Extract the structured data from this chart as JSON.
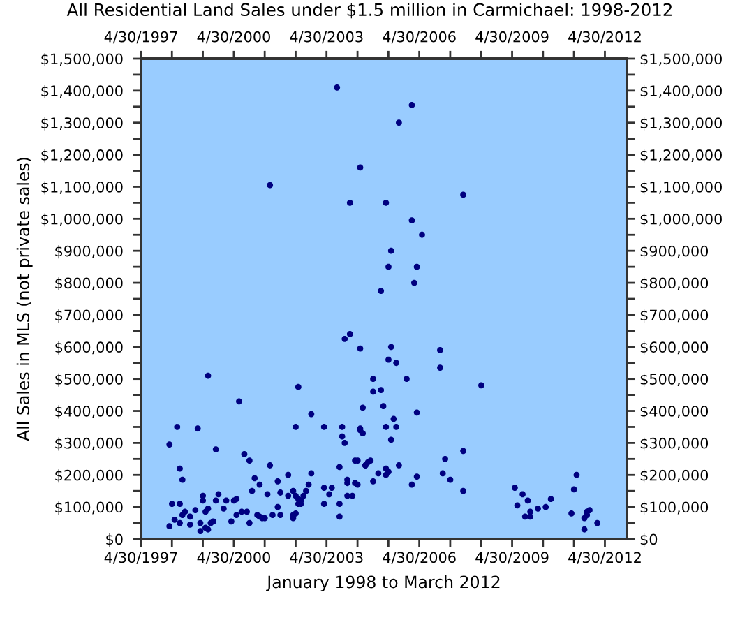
{
  "chart_data": {
    "type": "scatter",
    "title": "All Residential Land Sales under $1.5 million in Carmichael: 1998-2012",
    "xlabel": "January 1998 to March 2012",
    "ylabel": "All Sales in MLS (not private sales)",
    "color": "#000080",
    "marker": "circle",
    "x": [
      "1998-04",
      "1998-04",
      "1998-05",
      "1998-07",
      "1998-08",
      "1998-08",
      "1998-09",
      "1998-06",
      "1998-08",
      "1998-09",
      "1998-10",
      "1998-12",
      "1998-12",
      "1999-02",
      "1999-03",
      "1999-04",
      "1999-04",
      "1999-05",
      "1999-05",
      "1999-06",
      "1999-06",
      "1999-07",
      "1999-07",
      "1999-07",
      "1999-08",
      "1999-09",
      "1999-10",
      "1999-11",
      "1999-10",
      "2000-01",
      "2000-02",
      "2000-04",
      "2000-05",
      "2000-06",
      "2000-06",
      "2000-07",
      "2000-08",
      "2000-09",
      "2000-10",
      "2000-11",
      "2000-11",
      "2001-01",
      "2000-12",
      "2001-02",
      "2001-03",
      "2001-03",
      "2001-04",
      "2001-05",
      "2001-06",
      "2001-07",
      "2001-08",
      "2001-10",
      "2001-10",
      "2001-11",
      "2002-02",
      "2001-11",
      "2002-02",
      "2002-04",
      "2002-05",
      "2002-06",
      "2002-06",
      "2002-07",
      "2002-07",
      "2002-04",
      "2002-04",
      "2002-05",
      "2002-06",
      "2002-05",
      "2002-11",
      "2002-11",
      "2002-10",
      "2002-09",
      "2002-08",
      "2003-04",
      "2003-04",
      "2003-04",
      "2003-06",
      "2003-07",
      "2003-10",
      "2003-10",
      "2003-10",
      "2003-11",
      "2003-11",
      "2003-12",
      "2004-01",
      "2004-01",
      "2004-01",
      "2004-03",
      "2004-04",
      "2004-04",
      "2004-05",
      "2004-05",
      "2004-06",
      "2004-06",
      "2004-07",
      "2004-07",
      "2004-08",
      "2004-08",
      "2004-09",
      "2004-10",
      "2004-11",
      "2004-11",
      "2004-11",
      "2005-01",
      "2005-02",
      "2005-03",
      "2005-04",
      "2005-04",
      "2005-04",
      "2005-05",
      "2005-05",
      "2005-06",
      "2005-07",
      "2005-08",
      "2005-08",
      "2005-09",
      "2005-12",
      "2006-02",
      "2006-04",
      "2006-04",
      "2007-01",
      "2007-01",
      "2007-02",
      "2007-03",
      "2007-05",
      "2007-10",
      "2007-10",
      "2008-05",
      "2003-09",
      "2006-02",
      "2005-09",
      "2004-06",
      "2001-07",
      "2004-02",
      "2005-04",
      "2007-10",
      "2006-02",
      "2006-06",
      "2005-06",
      "2005-05",
      "2006-04",
      "2006-03",
      "2005-02",
      "2004-02",
      "2003-12",
      "2004-06",
      "2005-06",
      "2009-06",
      "2009-09",
      "2009-07",
      "2009-11",
      "2009-10",
      "2009-12",
      "2009-12",
      "2010-03",
      "2010-06",
      "2010-08",
      "2011-04",
      "2011-05",
      "2011-06",
      "2011-09",
      "2011-10",
      "2011-10",
      "2011-11",
      "2011-09",
      "2012-02"
    ],
    "values": [
      40000,
      295000,
      110000,
      350000,
      110000,
      220000,
      185000,
      60000,
      50000,
      75000,
      85000,
      70000,
      45000,
      90000,
      345000,
      50000,
      25000,
      135000,
      120000,
      35000,
      85000,
      510000,
      30000,
      95000,
      50000,
      55000,
      280000,
      140000,
      120000,
      95000,
      120000,
      55000,
      120000,
      125000,
      75000,
      430000,
      85000,
      265000,
      85000,
      245000,
      50000,
      190000,
      150000,
      75000,
      170000,
      70000,
      65000,
      65000,
      140000,
      230000,
      75000,
      180000,
      100000,
      145000,
      200000,
      75000,
      135000,
      150000,
      135000,
      125000,
      110000,
      120000,
      110000,
      75000,
      65000,
      80000,
      475000,
      350000,
      390000,
      205000,
      170000,
      150000,
      135000,
      350000,
      160000,
      110000,
      140000,
      160000,
      110000,
      70000,
      225000,
      350000,
      320000,
      300000,
      185000,
      175000,
      135000,
      135000,
      245000,
      175000,
      170000,
      245000,
      340000,
      345000,
      330000,
      410000,
      230000,
      230000,
      240000,
      245000,
      460000,
      180000,
      500000,
      205000,
      465000,
      415000,
      350000,
      220000,
      200000,
      210000,
      560000,
      310000,
      375000,
      350000,
      550000,
      230000,
      500000,
      170000,
      395000,
      195000,
      590000,
      535000,
      205000,
      250000,
      185000,
      275000,
      150000,
      480000,
      1410000,
      1355000,
      1300000,
      1160000,
      1105000,
      1050000,
      1050000,
      1075000,
      995000,
      950000,
      900000,
      850000,
      850000,
      800000,
      775000,
      640000,
      625000,
      595000,
      600000,
      160000,
      140000,
      105000,
      120000,
      70000,
      85000,
      70000,
      95000,
      100000,
      125000,
      80000,
      155000,
      200000,
      65000,
      75000,
      85000,
      90000,
      30000,
      50000
    ],
    "xlim": [
      "1997-04-30",
      "2013-01-15"
    ],
    "xticks": [
      {
        "value": "1997-04-30",
        "label": "4/30/1997"
      },
      {
        "value": "1998-04-30",
        "label": null
      },
      {
        "value": "1999-04-30",
        "label": null
      },
      {
        "value": "2000-04-30",
        "label": "4/30/2000"
      },
      {
        "value": "2001-04-30",
        "label": null
      },
      {
        "value": "2002-04-30",
        "label": null
      },
      {
        "value": "2003-04-30",
        "label": "4/30/2003"
      },
      {
        "value": "2004-04-30",
        "label": null
      },
      {
        "value": "2005-04-30",
        "label": null
      },
      {
        "value": "2006-04-30",
        "label": "4/30/2006"
      },
      {
        "value": "2007-04-30",
        "label": null
      },
      {
        "value": "2008-04-30",
        "label": null
      },
      {
        "value": "2009-04-30",
        "label": "4/30/2009"
      },
      {
        "value": "2010-04-30",
        "label": null
      },
      {
        "value": "2011-04-30",
        "label": null
      },
      {
        "value": "2012-04-30",
        "label": "4/30/2012"
      }
    ],
    "x2lim": [
      "1997-04-30",
      "2013-01-15"
    ],
    "x2ticks": [
      {
        "value": "1997-04-30",
        "label": "4/30/1997"
      },
      {
        "value": "1998-04-30",
        "label": null
      },
      {
        "value": "1999-04-30",
        "label": null
      },
      {
        "value": "2000-04-30",
        "label": "4/30/2000"
      },
      {
        "value": "2001-04-30",
        "label": null
      },
      {
        "value": "2002-04-30",
        "label": null
      },
      {
        "value": "2003-04-30",
        "label": "4/30/2003"
      },
      {
        "value": "2004-04-30",
        "label": null
      },
      {
        "value": "2005-04-30",
        "label": null
      },
      {
        "value": "2006-04-30",
        "label": "4/30/2006"
      },
      {
        "value": "2007-04-30",
        "label": null
      },
      {
        "value": "2008-04-30",
        "label": null
      },
      {
        "value": "2009-04-30",
        "label": "4/30/2009"
      },
      {
        "value": "2010-04-30",
        "label": null
      },
      {
        "value": "2011-04-30",
        "label": null
      },
      {
        "value": "2012-04-30",
        "label": "4/30/2012"
      }
    ],
    "ylim": [
      0,
      1500000
    ],
    "yticks": [
      {
        "value": 0,
        "label": "$0"
      },
      {
        "value": 50000,
        "label": null
      },
      {
        "value": 100000,
        "label": "$100,000"
      },
      {
        "value": 150000,
        "label": null
      },
      {
        "value": 200000,
        "label": "$200,000"
      },
      {
        "value": 250000,
        "label": null
      },
      {
        "value": 300000,
        "label": "$300,000"
      },
      {
        "value": 350000,
        "label": null
      },
      {
        "value": 400000,
        "label": "$400,000"
      },
      {
        "value": 450000,
        "label": null
      },
      {
        "value": 500000,
        "label": "$500,000"
      },
      {
        "value": 550000,
        "label": null
      },
      {
        "value": 600000,
        "label": "$600,000"
      },
      {
        "value": 650000,
        "label": null
      },
      {
        "value": 700000,
        "label": "$700,000"
      },
      {
        "value": 750000,
        "label": null
      },
      {
        "value": 800000,
        "label": "$800,000"
      },
      {
        "value": 850000,
        "label": null
      },
      {
        "value": 900000,
        "label": "$900,000"
      },
      {
        "value": 950000,
        "label": null
      },
      {
        "value": 1000000,
        "label": "$1,000,000"
      },
      {
        "value": 1050000,
        "label": null
      },
      {
        "value": 1100000,
        "label": "$1,100,000"
      },
      {
        "value": 1150000,
        "label": null
      },
      {
        "value": 1200000,
        "label": "$1,200,000"
      },
      {
        "value": 1250000,
        "label": null
      },
      {
        "value": 1300000,
        "label": "$1,300,000"
      },
      {
        "value": 1350000,
        "label": null
      },
      {
        "value": 1400000,
        "label": "$1,400,000"
      },
      {
        "value": 1450000,
        "label": null
      },
      {
        "value": 1500000,
        "label": "$1,500,000"
      }
    ],
    "y2lim": [
      0,
      1500000
    ],
    "y2ticks": [
      {
        "value": 0,
        "label": "$0"
      },
      {
        "value": 50000,
        "label": null
      },
      {
        "value": 100000,
        "label": "$100,000"
      },
      {
        "value": 150000,
        "label": null
      },
      {
        "value": 200000,
        "label": "$200,000"
      },
      {
        "value": 250000,
        "label": null
      },
      {
        "value": 300000,
        "label": "$300,000"
      },
      {
        "value": 350000,
        "label": null
      },
      {
        "value": 400000,
        "label": "$400,000"
      },
      {
        "value": 450000,
        "label": null
      },
      {
        "value": 500000,
        "label": "$500,000"
      },
      {
        "value": 550000,
        "label": null
      },
      {
        "value": 600000,
        "label": "$600,000"
      },
      {
        "value": 650000,
        "label": null
      },
      {
        "value": 700000,
        "label": "$700,000"
      },
      {
        "value": 750000,
        "label": null
      },
      {
        "value": 800000,
        "label": "$800,000"
      },
      {
        "value": 850000,
        "label": null
      },
      {
        "value": 900000,
        "label": "$900,000"
      },
      {
        "value": 950000,
        "label": null
      },
      {
        "value": 1000000,
        "label": "$1,000,000"
      },
      {
        "value": 1050000,
        "label": null
      },
      {
        "value": 1100000,
        "label": "$1,100,000"
      },
      {
        "value": 1150000,
        "label": null
      },
      {
        "value": 1200000,
        "label": "$1,200,000"
      },
      {
        "value": 1250000,
        "label": null
      },
      {
        "value": 1300000,
        "label": "$1,300,000"
      },
      {
        "value": 1350000,
        "label": null
      },
      {
        "value": 1400000,
        "label": "$1,400,000"
      },
      {
        "value": 1450000,
        "label": null
      },
      {
        "value": 1500000,
        "label": "$1,500,000"
      }
    ]
  }
}
